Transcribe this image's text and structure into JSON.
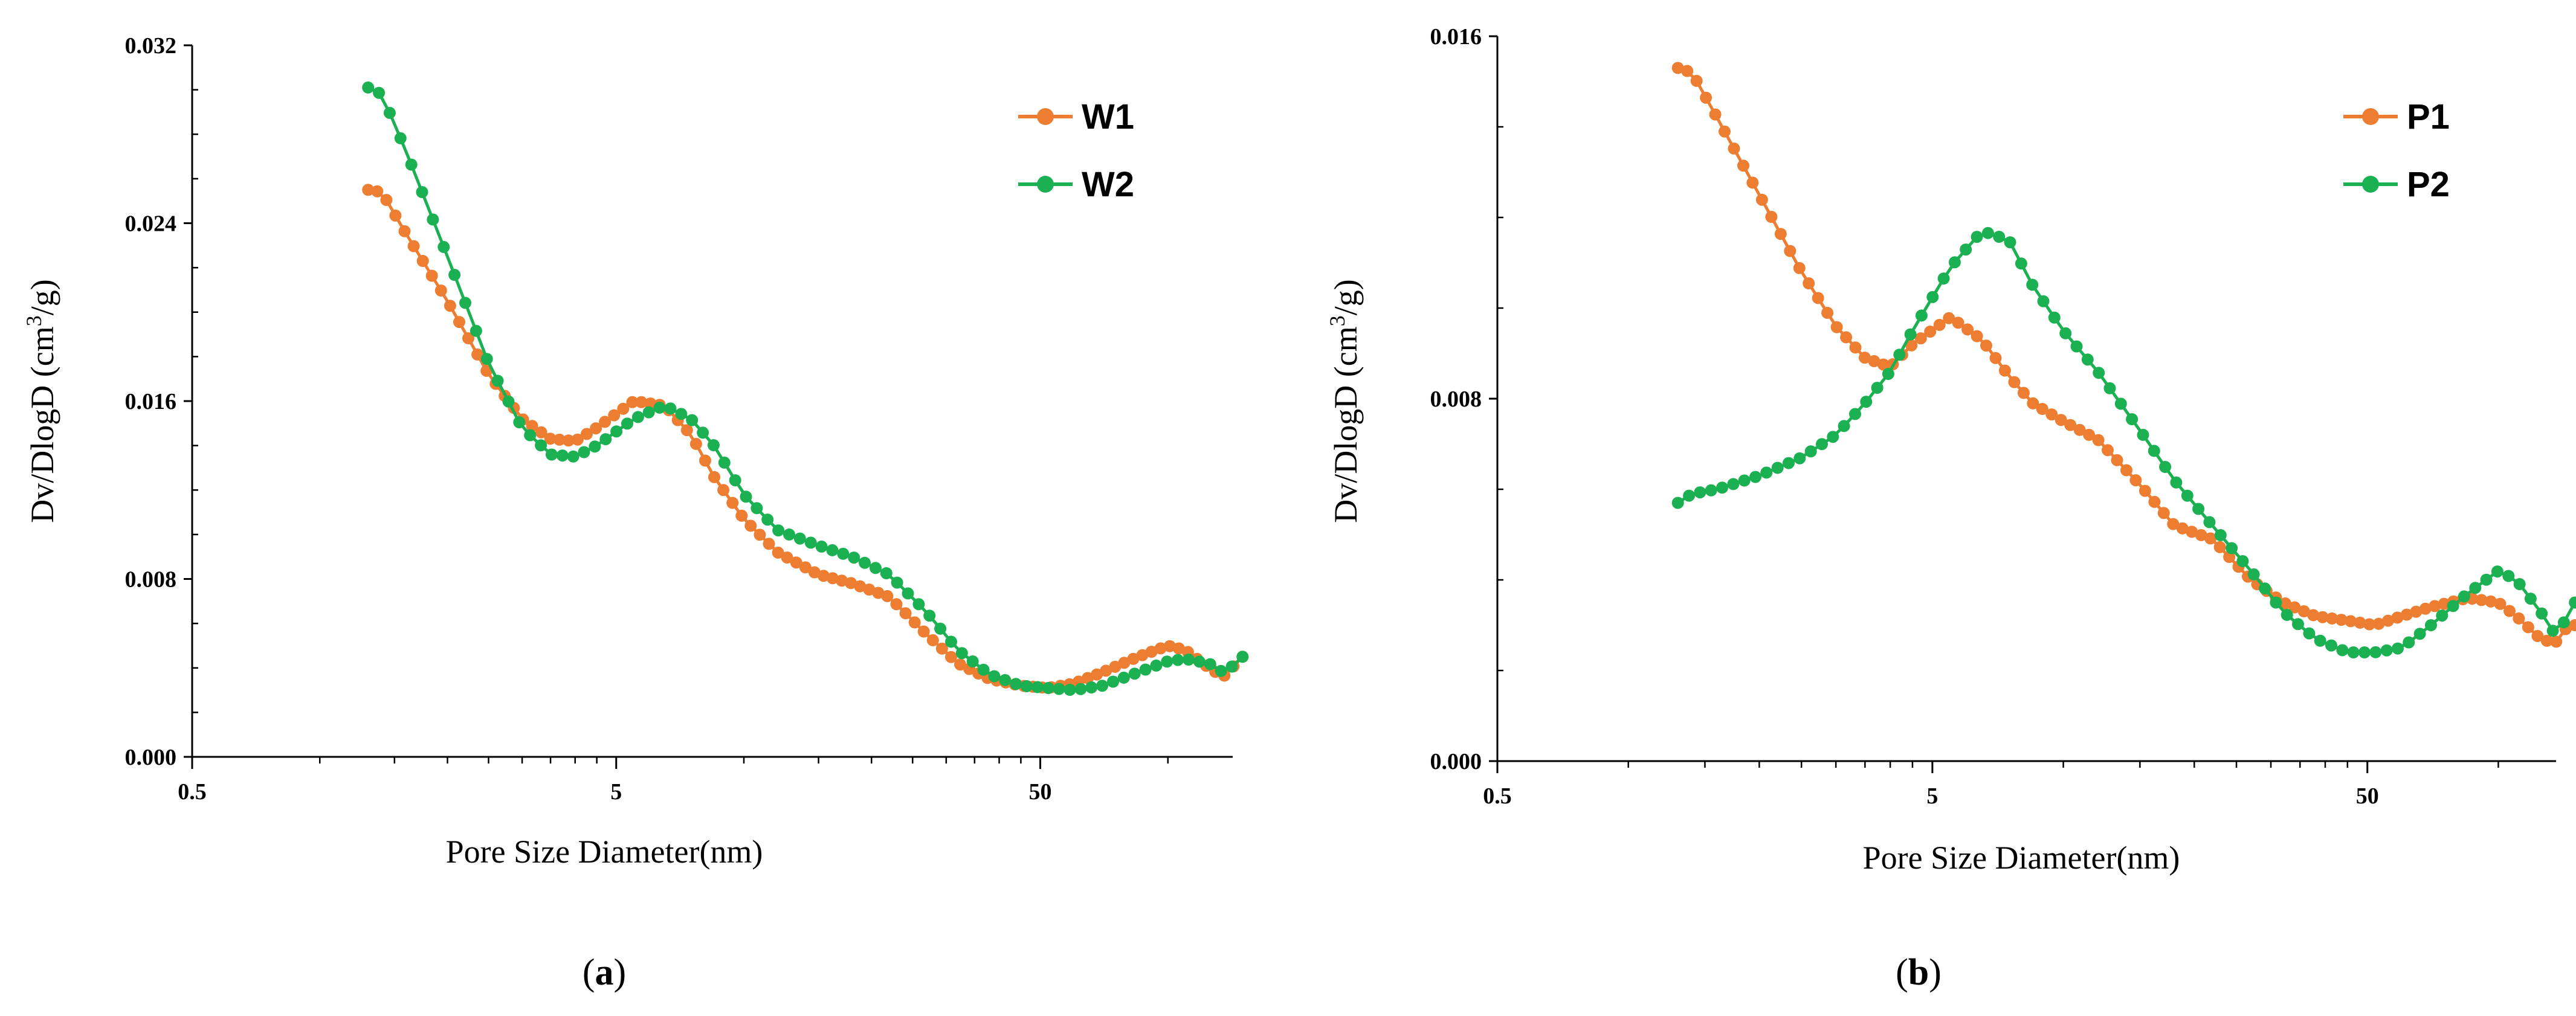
{
  "colors": {
    "orange": "#ED7D31",
    "green": "#1BB152",
    "axis": "#000000"
  },
  "chart_data": [
    {
      "type": "line",
      "panel_label": {
        "open": "(",
        "letter": "a",
        "close": ")"
      },
      "xlabel": "Pore Size Diameter(nm)",
      "ylabel": {
        "main": "Dv/DlogD  (cm",
        "sup": "3",
        "end": "/g)"
      },
      "xscale": "log",
      "xlim": [
        0.5,
        120
      ],
      "ylim": [
        0,
        0.032
      ],
      "xticks": [
        {
          "v": 0.5,
          "label": "0.5"
        },
        {
          "v": 5,
          "label": "5"
        },
        {
          "v": 50,
          "label": "50"
        }
      ],
      "yticks": [
        {
          "v": 0,
          "label": "0.000"
        },
        {
          "v": 0.008,
          "label": "0.008"
        },
        {
          "v": 0.016,
          "label": "0.016"
        },
        {
          "v": 0.024,
          "label": "0.024"
        },
        {
          "v": 0.032,
          "label": "0.032"
        }
      ],
      "legend_position": "top-right",
      "series": [
        {
          "name": "W1",
          "color": "orange",
          "count": 97,
          "anchors": [
            [
              1.3,
              0.0255
            ],
            [
              1.4,
              0.0254
            ],
            [
              1.6,
              0.0235
            ],
            [
              2.0,
              0.0205
            ],
            [
              2.5,
              0.0172
            ],
            [
              3.0,
              0.0152
            ],
            [
              3.5,
              0.0143
            ],
            [
              4.0,
              0.0142
            ],
            [
              4.5,
              0.0148
            ],
            [
              5.5,
              0.016
            ],
            [
              6.5,
              0.0158
            ],
            [
              7.5,
              0.0145
            ],
            [
              8.5,
              0.0126
            ],
            [
              10,
              0.0107
            ],
            [
              12,
              0.0092
            ],
            [
              15,
              0.0082
            ],
            [
              18,
              0.0078
            ],
            [
              22,
              0.0072
            ],
            [
              27,
              0.0055
            ],
            [
              32,
              0.0042
            ],
            [
              38,
              0.0035
            ],
            [
              45,
              0.0032
            ],
            [
              52,
              0.0031
            ],
            [
              60,
              0.0033
            ],
            [
              70,
              0.0038
            ],
            [
              85,
              0.0045
            ],
            [
              100,
              0.005
            ],
            [
              110,
              0.0048
            ],
            [
              125,
              0.004
            ],
            [
              135,
              0.0036
            ],
            [
              145,
              0.0042
            ],
            [
              150,
              0.0045
            ]
          ]
        },
        {
          "name": "W2",
          "color": "green",
          "count": 82,
          "anchors": [
            [
              1.3,
              0.0301
            ],
            [
              1.4,
              0.0298
            ],
            [
              1.6,
              0.0272
            ],
            [
              2.0,
              0.0225
            ],
            [
              2.5,
              0.0177
            ],
            [
              3.0,
              0.0148
            ],
            [
              3.5,
              0.0136
            ],
            [
              4.0,
              0.0135
            ],
            [
              4.5,
              0.014
            ],
            [
              5.5,
              0.0152
            ],
            [
              6.5,
              0.0158
            ],
            [
              7.5,
              0.0152
            ],
            [
              8.5,
              0.014
            ],
            [
              10,
              0.0118
            ],
            [
              12,
              0.0102
            ],
            [
              15,
              0.0095
            ],
            [
              18,
              0.009
            ],
            [
              22,
              0.0082
            ],
            [
              27,
              0.0065
            ],
            [
              32,
              0.0048
            ],
            [
              38,
              0.0037
            ],
            [
              45,
              0.0032
            ],
            [
              52,
              0.0031
            ],
            [
              60,
              0.003
            ],
            [
              70,
              0.0032
            ],
            [
              85,
              0.0038
            ],
            [
              100,
              0.0043
            ],
            [
              110,
              0.0044
            ],
            [
              125,
              0.0042
            ],
            [
              135,
              0.0038
            ],
            [
              145,
              0.0042
            ],
            [
              150,
              0.0045
            ]
          ]
        }
      ]
    },
    {
      "type": "line",
      "panel_label": {
        "open": "(",
        "letter": "b",
        "close": ")"
      },
      "xlabel": "Pore Size Diameter(nm)",
      "ylabel": {
        "main": "Dv/DlogD  (cm",
        "sup": "3",
        "end": "/g)"
      },
      "xscale": "log",
      "xlim": [
        0.5,
        120
      ],
      "ylim": [
        0,
        0.016
      ],
      "xticks": [
        {
          "v": 0.5,
          "label": "0.5"
        },
        {
          "v": 5,
          "label": "5"
        },
        {
          "v": 50,
          "label": "50"
        }
      ],
      "yticks": [
        {
          "v": 0,
          "label": "0.000"
        },
        {
          "v": 0.008,
          "label": "0.008"
        },
        {
          "v": 0.016,
          "label": "0.016"
        }
      ],
      "legend_position": "top-right",
      "series": [
        {
          "name": "P1",
          "color": "orange",
          "count": 97,
          "anchors": [
            [
              1.3,
              0.0153
            ],
            [
              1.4,
              0.0152
            ],
            [
              1.6,
              0.0142
            ],
            [
              2.0,
              0.0125
            ],
            [
              2.5,
              0.0108
            ],
            [
              3.0,
              0.0096
            ],
            [
              3.5,
              0.0089
            ],
            [
              4.0,
              0.0087
            ],
            [
              4.5,
              0.0092
            ],
            [
              5.5,
              0.0098
            ],
            [
              6.5,
              0.0093
            ],
            [
              7.5,
              0.0085
            ],
            [
              8.5,
              0.0079
            ],
            [
              10,
              0.0075
            ],
            [
              12,
              0.0071
            ],
            [
              15,
              0.0061
            ],
            [
              18,
              0.0052
            ],
            [
              22,
              0.0049
            ],
            [
              27,
              0.004
            ],
            [
              32,
              0.0035
            ],
            [
              38,
              0.0032
            ],
            [
              45,
              0.0031
            ],
            [
              52,
              0.003
            ],
            [
              60,
              0.0032
            ],
            [
              70,
              0.0034
            ],
            [
              85,
              0.0036
            ],
            [
              100,
              0.0035
            ],
            [
              110,
              0.0032
            ],
            [
              125,
              0.0027
            ],
            [
              135,
              0.0026
            ],
            [
              145,
              0.003
            ],
            [
              150,
              0.003
            ]
          ]
        },
        {
          "name": "P2",
          "color": "green",
          "count": 82,
          "anchors": [
            [
              1.3,
              0.0057
            ],
            [
              1.4,
              0.0059
            ],
            [
              1.6,
              0.006
            ],
            [
              2.0,
              0.0063
            ],
            [
              2.5,
              0.0067
            ],
            [
              3.0,
              0.0072
            ],
            [
              3.5,
              0.0079
            ],
            [
              4.0,
              0.0086
            ],
            [
              4.5,
              0.0095
            ],
            [
              5.5,
              0.0109
            ],
            [
              6.5,
              0.0117
            ],
            [
              7.5,
              0.0115
            ],
            [
              8.5,
              0.0105
            ],
            [
              10,
              0.0095
            ],
            [
              12,
              0.0086
            ],
            [
              15,
              0.0073
            ],
            [
              18,
              0.0062
            ],
            [
              22,
              0.0052
            ],
            [
              27,
              0.0042
            ],
            [
              32,
              0.0033
            ],
            [
              38,
              0.0027
            ],
            [
              45,
              0.0024
            ],
            [
              52,
              0.0024
            ],
            [
              60,
              0.0025
            ],
            [
              70,
              0.003
            ],
            [
              85,
              0.0037
            ],
            [
              100,
              0.0042
            ],
            [
              110,
              0.004
            ],
            [
              125,
              0.0033
            ],
            [
              135,
              0.0028
            ],
            [
              145,
              0.0032
            ],
            [
              150,
              0.0035
            ]
          ]
        }
      ]
    }
  ]
}
